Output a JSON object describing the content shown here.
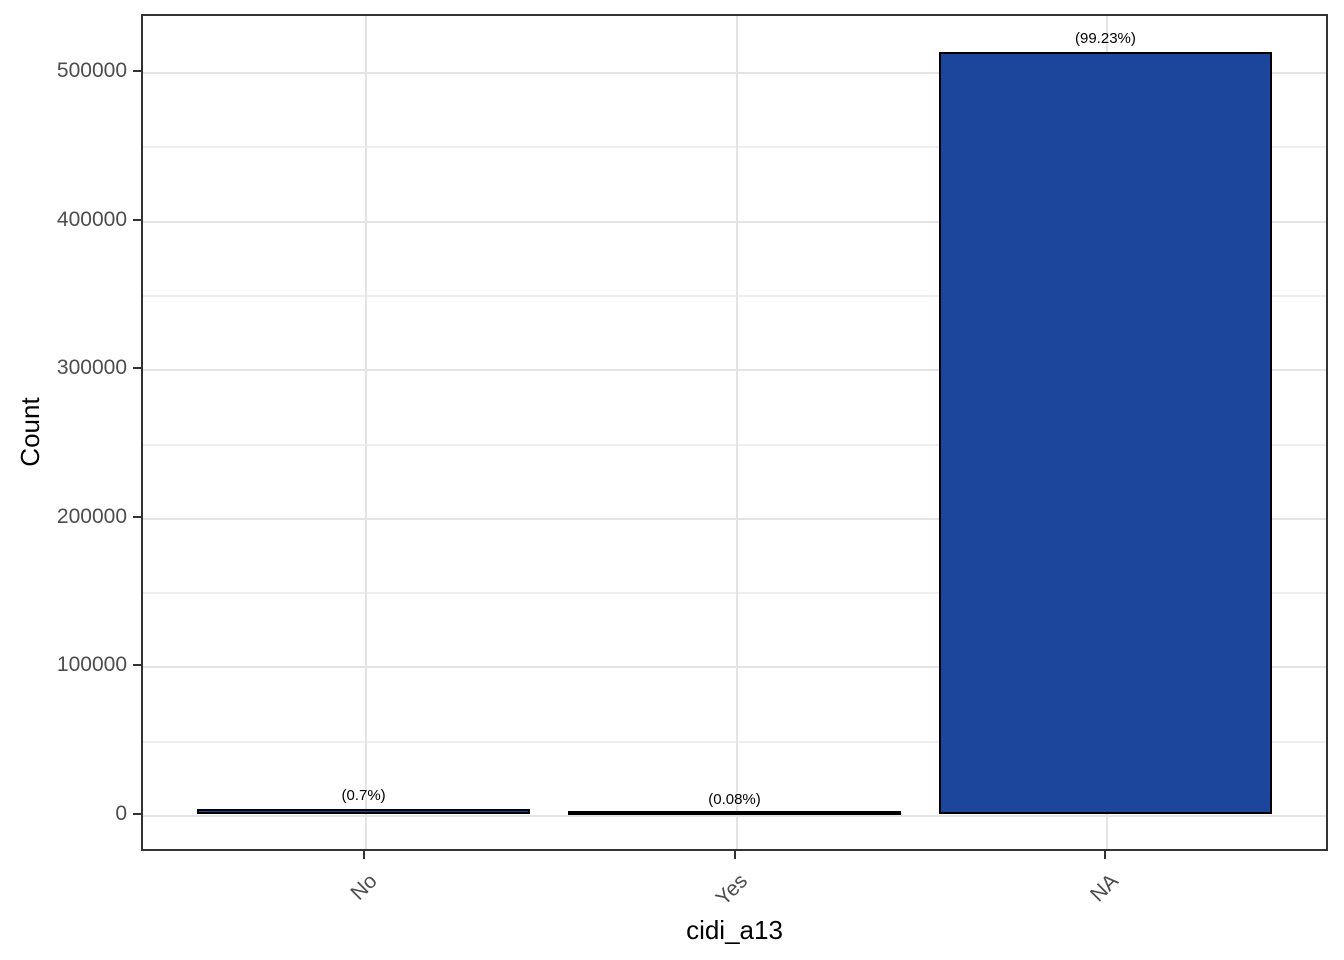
{
  "chart_data": {
    "type": "bar",
    "title": "",
    "xlabel": "cidi_a13",
    "ylabel": "Count",
    "categories": [
      "No",
      "Yes",
      "NA"
    ],
    "values": [
      3620,
      414,
      513000
    ],
    "bar_labels": [
      "(0.7%)",
      "(0.08%)",
      "(99.23%)"
    ],
    "percentages": [
      0.7,
      0.08,
      99.23
    ],
    "y_ticks": [
      0,
      100000,
      200000,
      300000,
      400000,
      500000
    ],
    "y_tick_labels": [
      "0",
      "100000",
      "200000",
      "300000",
      "400000",
      "500000"
    ],
    "y_minor_ticks": [
      50000,
      150000,
      250000,
      350000,
      450000
    ],
    "ylim": [
      -24000,
      538000
    ],
    "grid": true,
    "legend_position": "none",
    "colors": {
      "bar_fill": "#1c469b",
      "bar_stroke": "#000000",
      "grid_major": "#e4e4e4",
      "grid_minor": "#efefef",
      "panel_border": "#333333",
      "tick_label": "#4d4d4d",
      "axis_title": "#000000",
      "background": "#ffffff"
    }
  }
}
